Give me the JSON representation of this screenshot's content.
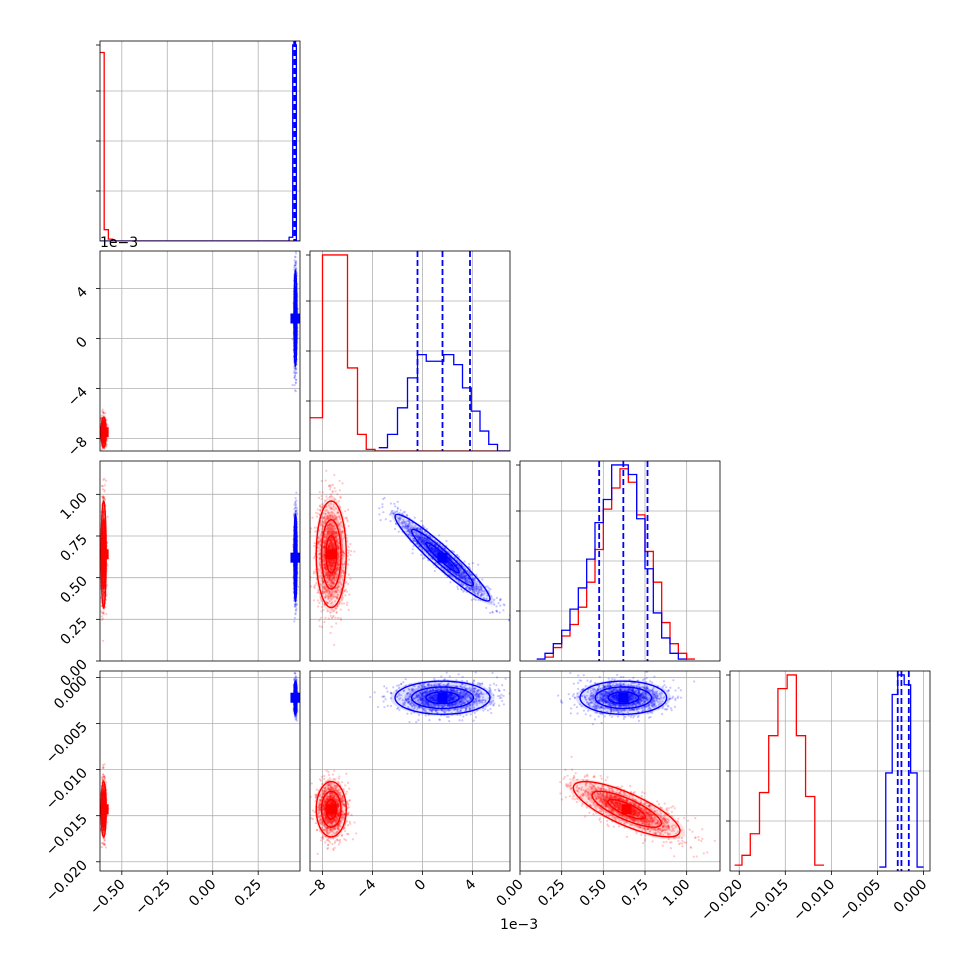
{
  "chart_data": {
    "type": "corner",
    "series": [
      {
        "color": "#ff0000"
      },
      {
        "color": "#0000ff"
      }
    ],
    "params": [
      {
        "lim": [
          -0.62,
          0.48
        ],
        "ticks": [
          -0.5,
          -0.25,
          0.0,
          0.25
        ],
        "tick_labels": [
          "−0.50",
          "−0.25",
          "0.00",
          "0.25"
        ],
        "offset": ""
      },
      {
        "lim": [
          -9.0,
          7.0
        ],
        "ticks": [
          -8,
          -4,
          0,
          4
        ],
        "tick_labels": [
          "−8",
          "−4",
          "0",
          "4"
        ],
        "offset": "1e−3"
      },
      {
        "lim": [
          0.0,
          1.2
        ],
        "ticks": [
          0.0,
          0.25,
          0.5,
          0.75,
          1.0
        ],
        "tick_labels": [
          "0.00",
          "0.25",
          "0.50",
          "0.75",
          "1.00"
        ],
        "offset": ""
      },
      {
        "lim": [
          -0.021,
          0.0007
        ],
        "ticks": [
          -0.02,
          -0.015,
          -0.01,
          -0.005,
          0.0
        ],
        "tick_labels": [
          "−0.020",
          "−0.015",
          "−0.010",
          "−0.005",
          "0.000"
        ],
        "offset": ""
      }
    ],
    "diag": [
      {
        "quantile_lines": {
          "color": "#0000ff",
          "values": [
            0.448,
            0.451,
            0.454
          ]
        },
        "hist": [
          {
            "color": "#ff0000",
            "edges": [
              -0.62,
              -0.597,
              -0.574,
              -0.551,
              0.45
            ],
            "counts": [
              100,
              6,
              1,
              0
            ]
          },
          {
            "color": "#0000ff",
            "edges": [
              -0.62,
              0.42,
              0.44,
              0.46,
              0.48
            ],
            "counts": [
              0,
              2,
              104,
              0
            ]
          }
        ]
      },
      {
        "quantile_lines": {
          "color": "#0000ff",
          "values": [
            -0.4,
            1.6,
            3.8
          ]
        },
        "hist": [
          {
            "color": "#ff0000",
            "edges": [
              -9.0,
              -8.0,
              -7.3,
              -6.0,
              -5.2,
              -4.5,
              -3.8,
              -3.0,
              7.0
            ],
            "counts": [
              1.0,
              5.9,
              5.9,
              2.5,
              0.5,
              0.05,
              0.0,
              0.0
            ]
          },
          {
            "color": "#0000ff",
            "edges": [
              -3.5,
              -2.8,
              -2.0,
              -1.2,
              -0.4,
              0.3,
              1.0,
              1.7,
              2.5,
              3.2,
              3.9,
              4.6,
              5.3,
              6.0,
              7.0
            ],
            "counts": [
              0.1,
              0.5,
              1.3,
              2.2,
              2.9,
              2.7,
              2.7,
              2.9,
              2.6,
              1.9,
              1.2,
              0.6,
              0.2,
              0.0
            ]
          }
        ]
      },
      {
        "quantile_lines": {
          "color": "#0000ff",
          "values": [
            0.475,
            0.62,
            0.765
          ]
        },
        "hist": [
          {
            "color": "#ff0000",
            "edges": [
              0.15,
              0.2,
              0.25,
              0.3,
              0.35,
              0.4,
              0.45,
              0.5,
              0.55,
              0.6,
              0.65,
              0.7,
              0.75,
              0.8,
              0.85,
              0.9,
              0.95,
              1.0,
              1.05
            ],
            "counts": [
              0.02,
              0.07,
              0.13,
              0.19,
              0.28,
              0.41,
              0.58,
              0.79,
              0.9,
              1.0,
              0.93,
              0.76,
              0.57,
              0.41,
              0.2,
              0.09,
              0.04,
              0.01
            ]
          },
          {
            "color": "#0000ff",
            "edges": [
              0.1,
              0.15,
              0.2,
              0.25,
              0.3,
              0.35,
              0.4,
              0.45,
              0.5,
              0.55,
              0.6,
              0.65,
              0.7,
              0.75,
              0.8,
              0.85,
              0.9,
              0.95,
              1.0
            ],
            "counts": [
              0.01,
              0.04,
              0.09,
              0.16,
              0.27,
              0.38,
              0.53,
              0.72,
              0.84,
              1.02,
              1.02,
              0.97,
              0.74,
              0.48,
              0.25,
              0.12,
              0.04,
              0.01
            ]
          }
        ]
      },
      {
        "quantile_lines": {
          "color": "#0000ff",
          "values": [
            -0.0028,
            -0.0024,
            -0.0016
          ]
        },
        "hist": [
          {
            "color": "#ff0000",
            "edges": [
              -0.0205,
              -0.0197,
              -0.0188,
              -0.0178,
              -0.0168,
              -0.0158,
              -0.0148,
              -0.0138,
              -0.0128,
              -0.0118,
              -0.0108
            ],
            "counts": [
              0.03,
              0.08,
              0.19,
              0.4,
              0.69,
              0.93,
              1.0,
              0.69,
              0.38,
              0.03
            ]
          },
          {
            "color": "#0000ff",
            "edges": [
              -0.0048,
              -0.0041,
              -0.0034,
              -0.0028,
              -0.0021,
              -0.0014,
              -0.0007,
              0.0
            ],
            "counts": [
              0.02,
              0.5,
              0.9,
              1.0,
              0.95,
              0.5,
              0.02
            ]
          }
        ]
      }
    ],
    "pairs": [
      {
        "row": 1,
        "col": 0,
        "clouds": [
          {
            "color": "#ff0000",
            "center": [
              -0.6,
              -7.5
            ],
            "sd": [
              0.007,
              0.6
            ],
            "rho": 0.0,
            "n": 700
          },
          {
            "color": "#0000ff",
            "center": [
              0.455,
              1.6
            ],
            "sd": [
              0.004,
              1.9
            ],
            "rho": 0.0,
            "n": 900
          }
        ]
      },
      {
        "row": 2,
        "col": 0,
        "clouds": [
          {
            "color": "#ff0000",
            "center": [
              -0.6,
              0.64
            ],
            "sd": [
              0.007,
              0.16
            ],
            "rho": 0.0,
            "n": 900
          },
          {
            "color": "#0000ff",
            "center": [
              0.455,
              0.62
            ],
            "sd": [
              0.004,
              0.13
            ],
            "rho": 0.0,
            "n": 900
          }
        ]
      },
      {
        "row": 2,
        "col": 1,
        "clouds": [
          {
            "color": "#ff0000",
            "center": [
              -7.3,
              0.64
            ],
            "sd": [
              0.6,
              0.16
            ],
            "rho": 0.0,
            "n": 1200
          },
          {
            "color": "#0000ff",
            "center": [
              1.6,
              0.62
            ],
            "sd": [
              1.9,
              0.13
            ],
            "rho": -0.95,
            "n": 1200
          }
        ]
      },
      {
        "row": 3,
        "col": 0,
        "clouds": [
          {
            "color": "#ff0000",
            "center": [
              -0.6,
              -0.0143
            ],
            "sd": [
              0.007,
              0.0015
            ],
            "rho": 0.0,
            "n": 700
          },
          {
            "color": "#0000ff",
            "center": [
              0.455,
              -0.0022
            ],
            "sd": [
              0.004,
              0.0009
            ],
            "rho": 0.0,
            "n": 700
          }
        ]
      },
      {
        "row": 3,
        "col": 1,
        "clouds": [
          {
            "color": "#ff0000",
            "center": [
              -7.3,
              -0.0143
            ],
            "sd": [
              0.6,
              0.0015
            ],
            "rho": 0.0,
            "n": 1100
          },
          {
            "color": "#0000ff",
            "center": [
              1.6,
              -0.0022
            ],
            "sd": [
              1.9,
              0.0009
            ],
            "rho": 0.0,
            "n": 1200
          }
        ]
      },
      {
        "row": 3,
        "col": 2,
        "clouds": [
          {
            "color": "#ff0000",
            "center": [
              0.64,
              -0.0143
            ],
            "sd": [
              0.16,
              0.0015
            ],
            "rho": -0.78,
            "n": 1200
          },
          {
            "color": "#0000ff",
            "center": [
              0.62,
              -0.0022
            ],
            "sd": [
              0.13,
              0.0009
            ],
            "rho": 0.0,
            "n": 1200
          }
        ]
      }
    ]
  }
}
